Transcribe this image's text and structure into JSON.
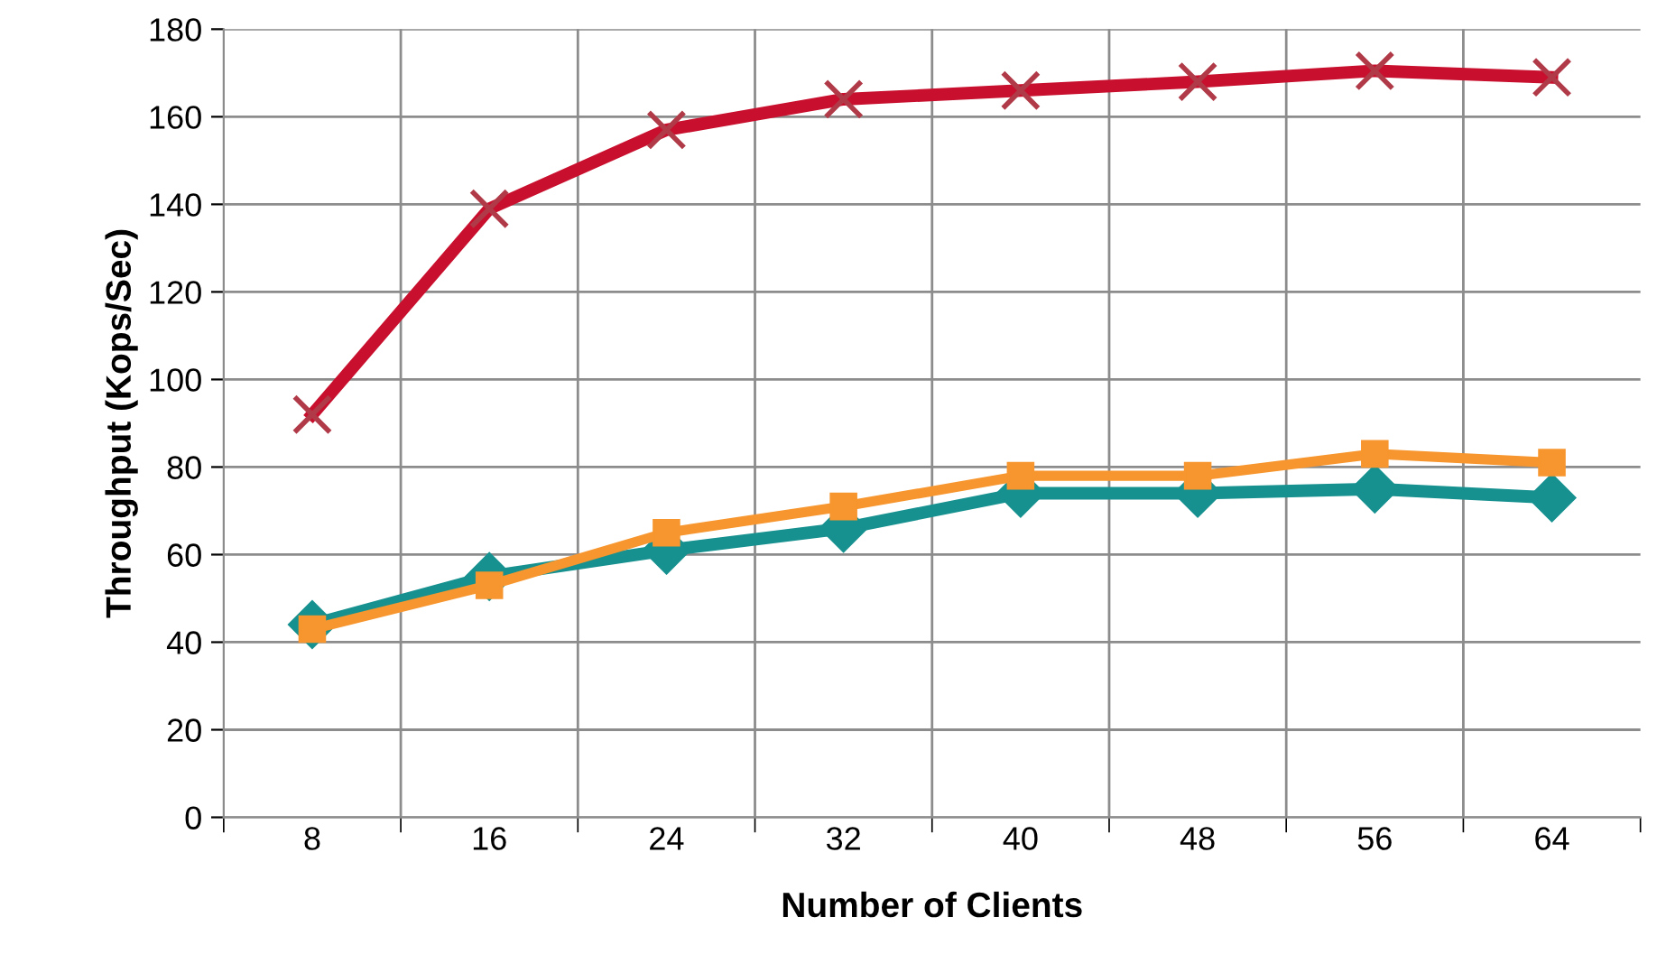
{
  "chart_data": {
    "type": "line",
    "xlabel": "Number of Clients",
    "ylabel": "Throughput (Kops/Sec)",
    "categories": [
      "8",
      "16",
      "24",
      "32",
      "40",
      "48",
      "56",
      "64"
    ],
    "series": [
      {
        "color": "#c8102e",
        "marker": "cross",
        "values": [
          92,
          139,
          157,
          164,
          166,
          168,
          170.5,
          169
        ]
      },
      {
        "color": "#16918f",
        "marker": "diamond",
        "values": [
          44,
          55,
          61,
          66,
          74,
          74,
          75,
          73
        ]
      },
      {
        "color": "#f7962e",
        "marker": "square",
        "values": [
          43,
          53,
          65,
          71,
          78,
          78,
          83,
          81
        ]
      }
    ],
    "ylim": [
      0,
      180
    ],
    "yticks": [
      0,
      20,
      40,
      60,
      80,
      100,
      120,
      140,
      160,
      180
    ],
    "grid": true,
    "legend": false
  }
}
